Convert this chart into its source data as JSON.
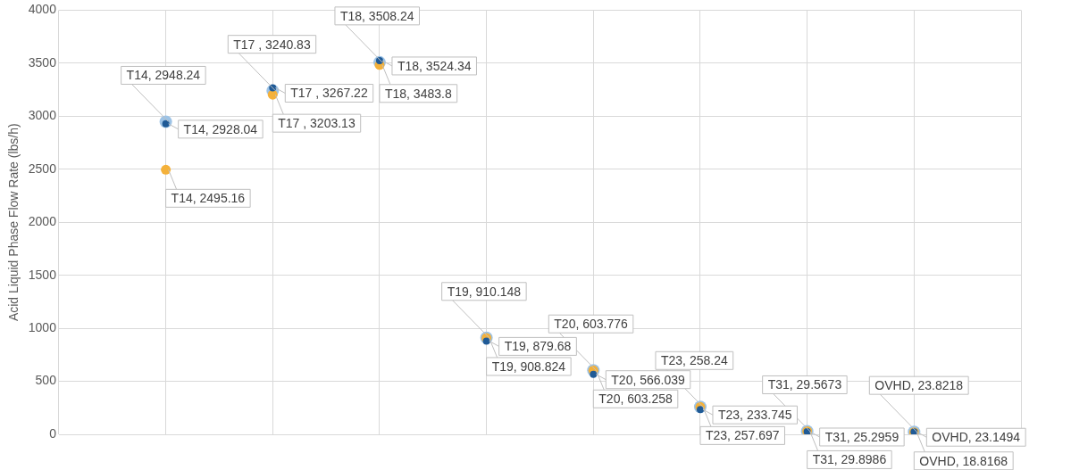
{
  "chart_data": {
    "type": "scatter",
    "ylabel": "Acid Liquid Phase Flow Rate (lbs/h)",
    "categories": [
      null,
      null,
      null,
      null,
      null,
      null,
      null,
      null
    ],
    "ylim": [
      0,
      4000
    ],
    "yticks": [
      0,
      500,
      1000,
      1500,
      2000,
      2500,
      3000,
      3500,
      4000
    ],
    "grid": true,
    "marker": "circle",
    "series": [
      {
        "color": "#9dc3e6",
        "values": [
          2948.24,
          3240.83,
          3508.24,
          910.148,
          603.776,
          258.24,
          29.5673,
          23.8218
        ],
        "value_labels": [
          "T14, 2948.24",
          "T17 , 3240.83",
          "T18, 3508.24",
          "T19, 910.148",
          "T20, 603.776",
          "T23, 258.24",
          "T31, 29.5673",
          "OVHD, 23.8218"
        ]
      },
      {
        "color": "#f4b13a",
        "values": [
          2495.16,
          3203.13,
          3483.8,
          908.824,
          603.258,
          257.697,
          29.8986,
          18.8168
        ],
        "value_labels": [
          "T14, 2495.16",
          "T17 , 3203.13",
          "T18, 3483.8",
          "T19, 908.824",
          "T20, 603.258",
          "T23, 257.697",
          "T31, 29.8986",
          "OVHD, 18.8168"
        ]
      },
      {
        "color": "#1f5a96",
        "values": [
          2928.04,
          3267.22,
          3524.34,
          879.68,
          566.039,
          233.745,
          25.2959,
          23.1494
        ],
        "value_labels": [
          "T14, 2928.04",
          "T17 , 3267.22",
          "T18, 3524.34",
          "T19, 879.68",
          "T20, 566.039",
          "T23, 233.745",
          "T31, 25.2959",
          "OVHD, 23.1494"
        ]
      }
    ]
  }
}
